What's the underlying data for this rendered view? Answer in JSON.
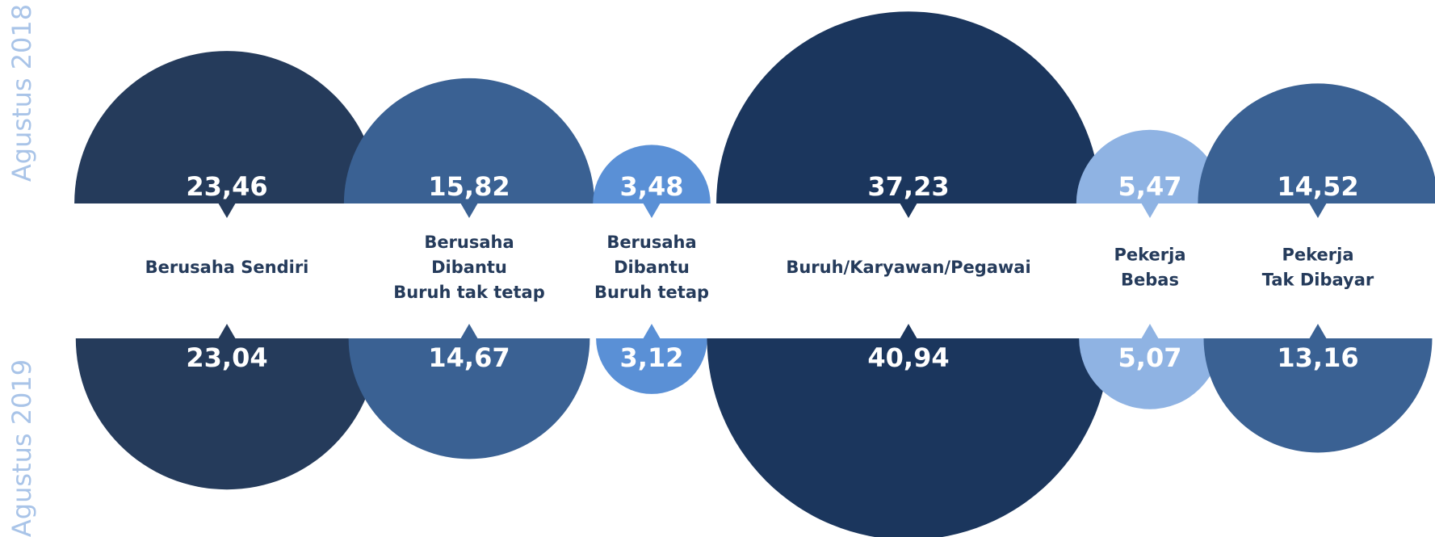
{
  "chart_data": {
    "type": "bubble",
    "categories": [
      "Berusaha Sendiri",
      "Berusaha\nDibantu\nBuruh tak tetap",
      "Berusaha\nDibantu\nBuruh tetap",
      "Buruh/Karyawan/Pegawai",
      "Pekerja\nBebas",
      "Pekerja\nTak Dibayar"
    ],
    "colors": [
      "#253b5b",
      "#3a6193",
      "#5a90d6",
      "#1b365d",
      "#8fb3e3",
      "#3a6193"
    ],
    "series": [
      {
        "name": "Agustus 2018",
        "values": [
          23.46,
          15.82,
          3.48,
          37.23,
          5.47,
          14.52
        ],
        "value_labels": [
          "23,46",
          "15,82",
          "3,48",
          "37,23",
          "5,47",
          "14,52"
        ]
      },
      {
        "name": "Agustus 2019",
        "values": [
          23.04,
          14.67,
          3.12,
          40.94,
          5.07,
          13.16
        ],
        "value_labels": [
          "23,04",
          "14,67",
          "3,12",
          "40,94",
          "5,07",
          "13,16"
        ]
      }
    ]
  }
}
